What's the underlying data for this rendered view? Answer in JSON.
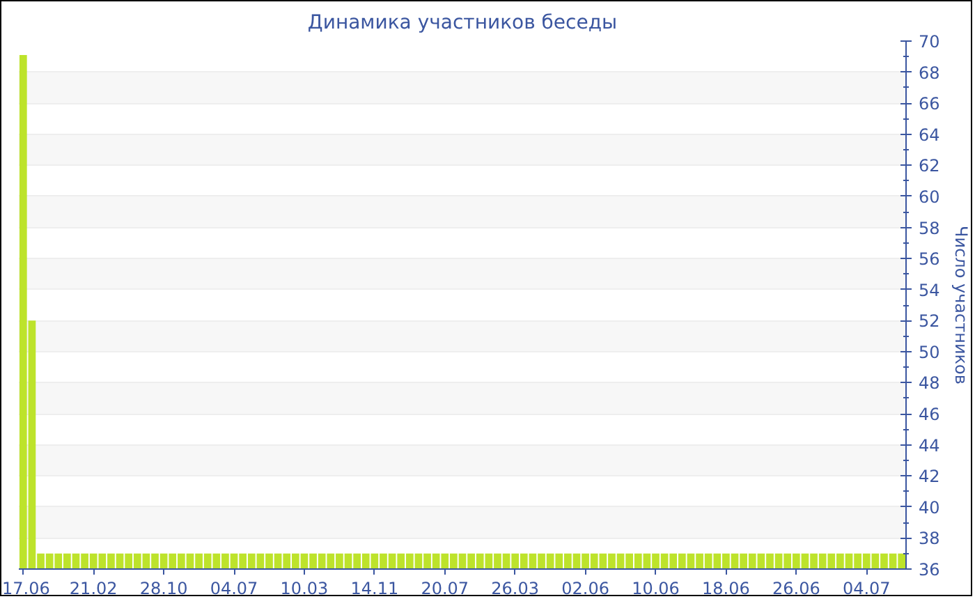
{
  "chart_data": {
    "type": "bar",
    "title": "Динамика участников беседы",
    "ylabel": "Число участников",
    "categories": [
      "17.06",
      null,
      null,
      null,
      null,
      null,
      null,
      null,
      "21.02",
      null,
      null,
      null,
      null,
      null,
      null,
      null,
      "28.10",
      null,
      null,
      null,
      null,
      null,
      null,
      null,
      "04.07",
      null,
      null,
      null,
      null,
      null,
      null,
      null,
      "10.03",
      null,
      null,
      null,
      null,
      null,
      null,
      null,
      "14.11",
      null,
      null,
      null,
      null,
      null,
      null,
      null,
      "20.07",
      null,
      null,
      null,
      null,
      null,
      null,
      null,
      "26.03",
      null,
      null,
      null,
      null,
      null,
      null,
      null,
      "02.06",
      null,
      null,
      null,
      null,
      null,
      null,
      null,
      "10.06",
      null,
      null,
      null,
      null,
      null,
      null,
      null,
      "18.06",
      null,
      null,
      null,
      null,
      null,
      null,
      null,
      "26.06",
      null,
      null,
      null,
      null,
      null,
      null,
      null,
      "04.07",
      null,
      null,
      null,
      null
    ],
    "values": [
      69.1,
      52,
      37,
      37,
      37,
      37,
      37,
      37,
      37,
      37,
      37,
      37,
      37,
      37,
      37,
      37,
      37,
      37,
      37,
      37,
      37,
      37,
      37,
      37,
      37,
      37,
      37,
      37,
      37,
      37,
      37,
      37,
      37,
      37,
      37,
      37,
      37,
      37,
      37,
      37,
      37,
      37,
      37,
      37,
      37,
      37,
      37,
      37,
      37,
      37,
      37,
      37,
      37,
      37,
      37,
      37,
      37,
      37,
      37,
      37,
      37,
      37,
      37,
      37,
      37,
      37,
      37,
      37,
      37,
      37,
      37,
      37,
      37,
      37,
      37,
      37,
      37,
      37,
      37,
      37,
      37,
      37,
      37,
      37,
      37,
      37,
      37,
      37,
      37,
      37,
      37,
      37,
      37,
      37,
      37,
      37,
      37,
      37,
      37,
      37,
      37
    ],
    "color": "#bde32b",
    "ylim": [
      36,
      70
    ],
    "yticks": [
      36,
      38,
      40,
      42,
      44,
      46,
      48,
      50,
      52,
      54,
      56,
      58,
      60,
      62,
      64,
      66,
      68,
      70
    ],
    "grid": "y"
  }
}
